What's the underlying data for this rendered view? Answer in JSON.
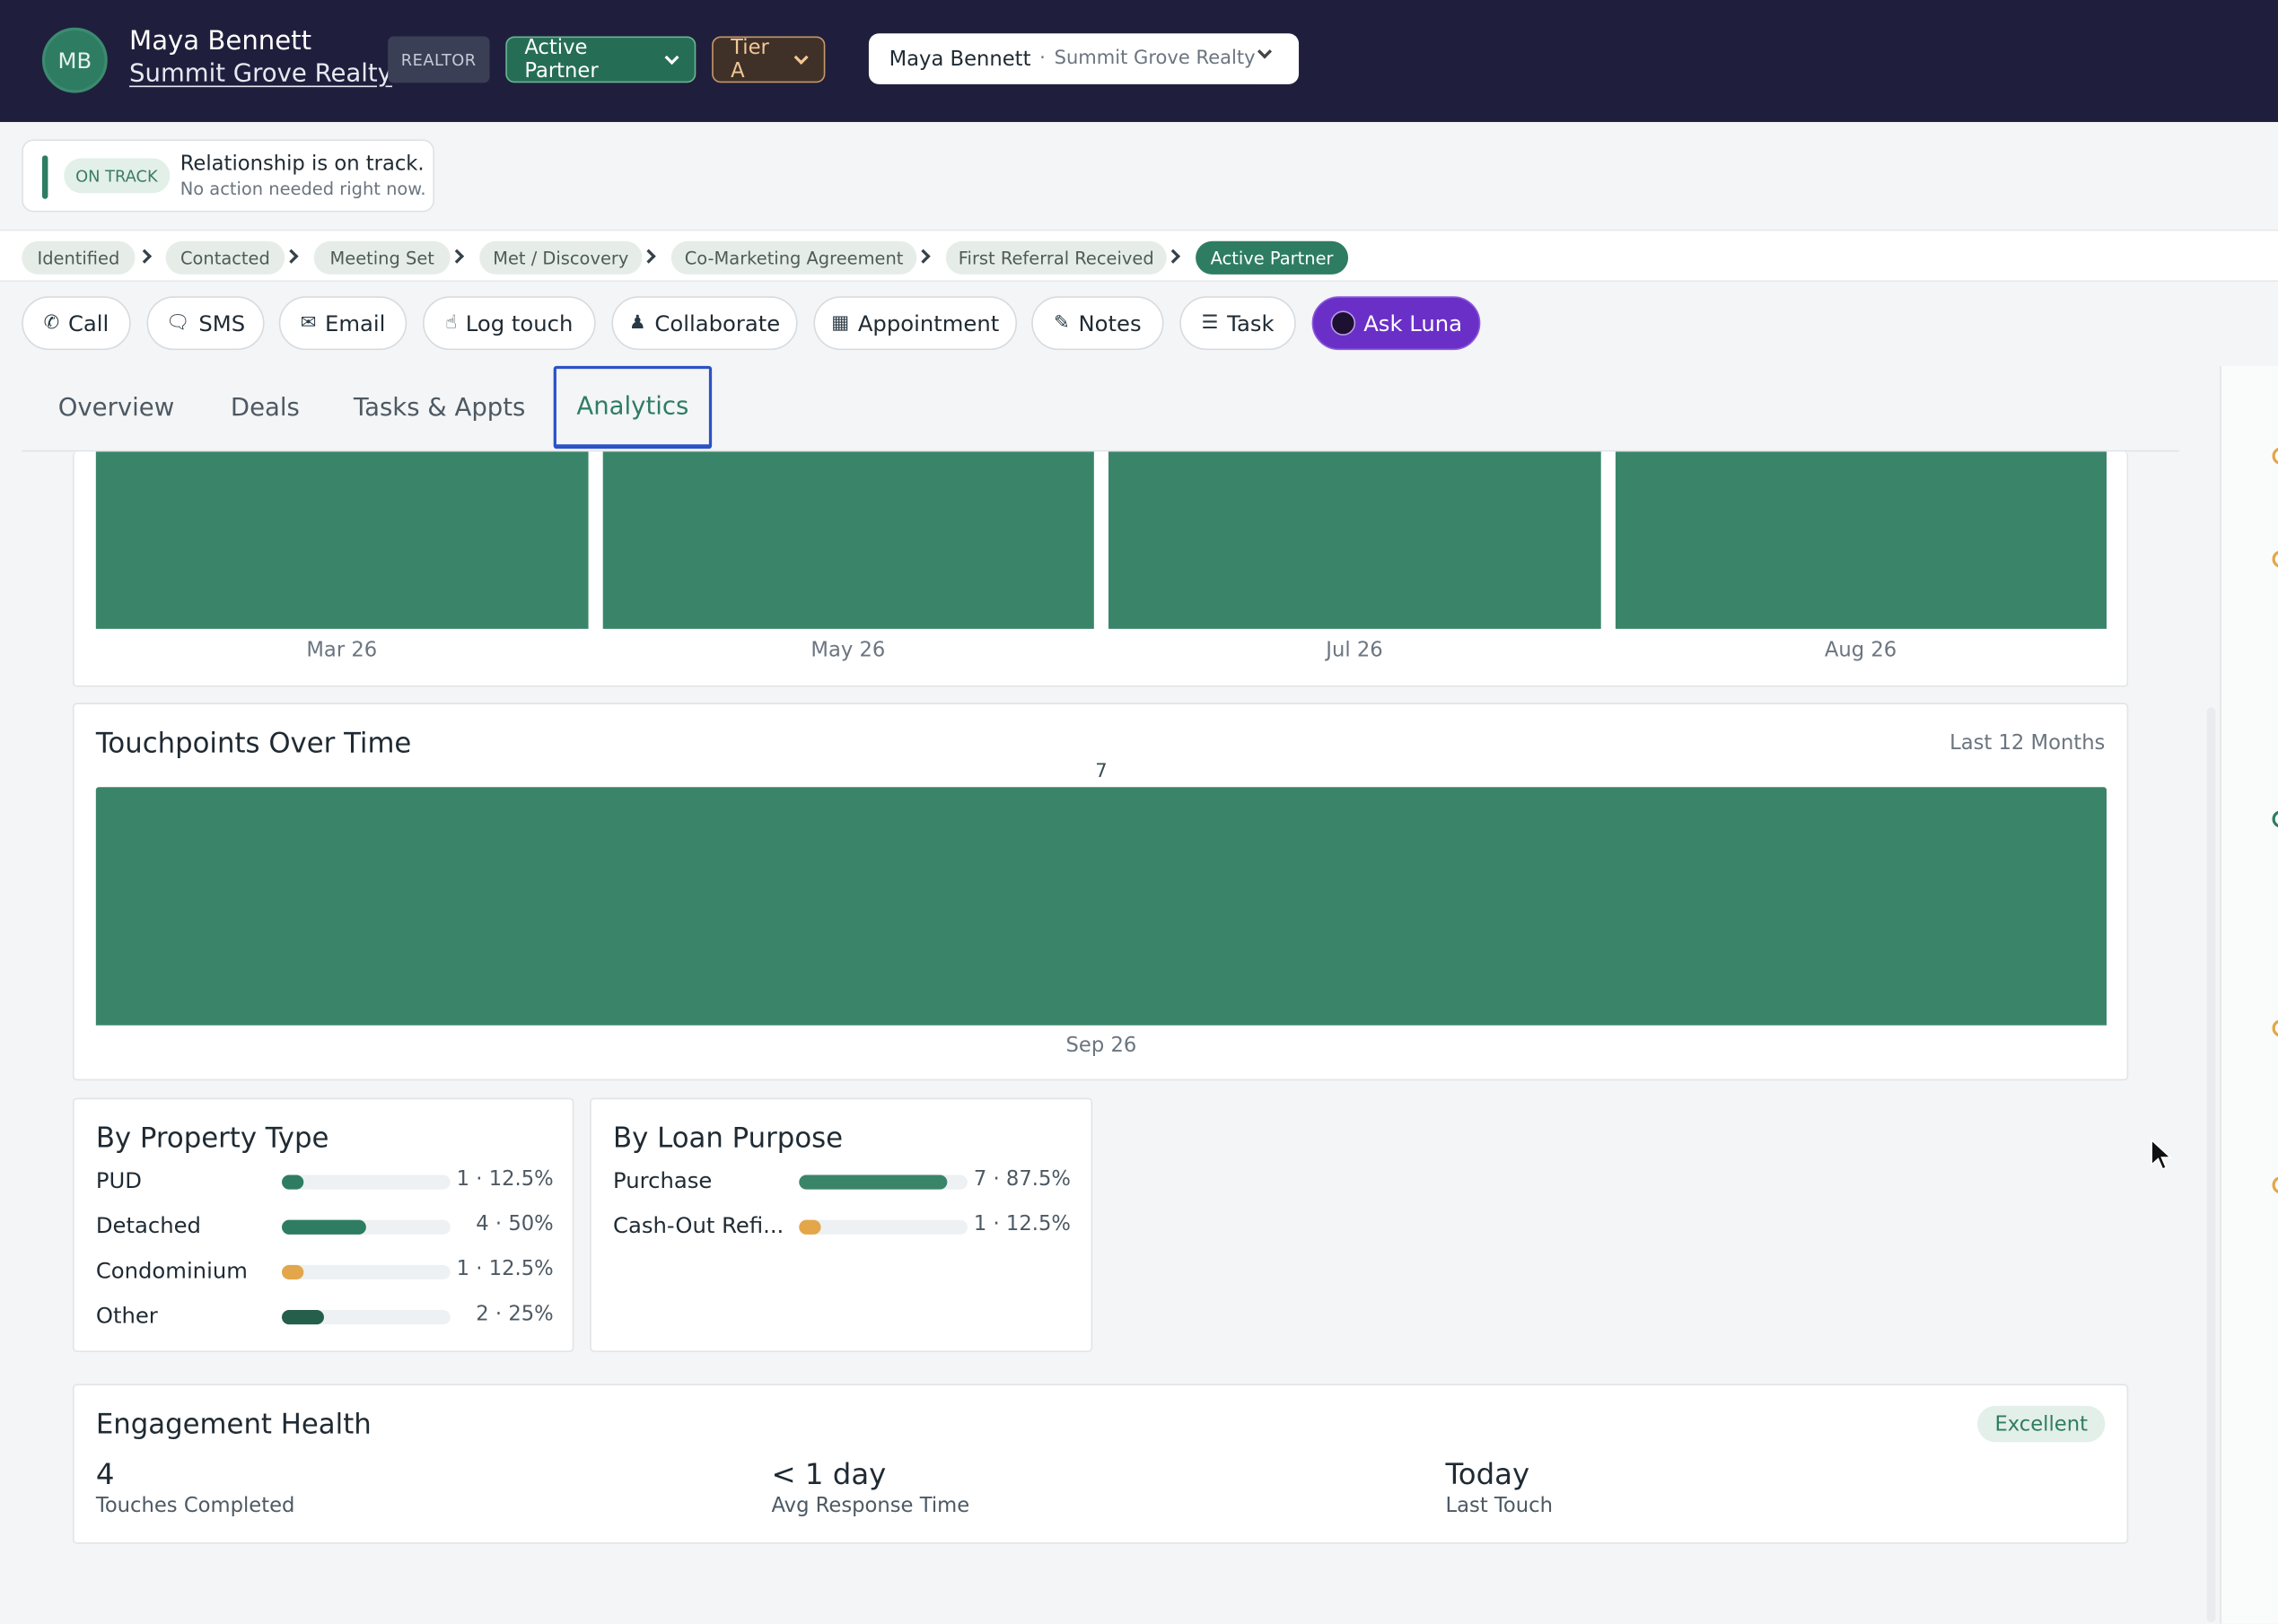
{
  "header": {
    "initials": "MB",
    "name": "Maya Bennett",
    "company": "Summit Grove Realty",
    "role_badge": "REALTOR",
    "status_label": "Active Partner",
    "tier_label": "Tier A",
    "context_name": "Maya Bennett",
    "context_sep": "·",
    "context_company": "Summit Grove Realty"
  },
  "status": {
    "tag": "ON TRACK",
    "title": "Relationship is on track.",
    "subtitle": "No action needed right now."
  },
  "pipeline": {
    "stages": [
      "Identified",
      "Contacted",
      "Meeting Set",
      "Met / Discovery",
      "Co-Marketing Agreement",
      "First Referral Received",
      "Active Partner"
    ],
    "current": "Active Partner"
  },
  "actions": {
    "call": "Call",
    "sms": "SMS",
    "email": "Email",
    "log_touch": "Log touch",
    "collaborate": "Collaborate",
    "appointment": "Appointment",
    "notes": "Notes",
    "task": "Task",
    "ask_luna": "Ask Luna"
  },
  "tabs": [
    "Overview",
    "Deals",
    "Tasks & Appts",
    "Analytics"
  ],
  "active_tab": "Analytics",
  "top_chart": {
    "chart_data": {
      "type": "bar",
      "categories": [
        "Mar 26",
        "May 26",
        "Jul 26",
        "Aug 26"
      ]
    }
  },
  "touchpoints": {
    "title": "Touchpoints Over Time",
    "range": "Last 12 Months",
    "chart_data": {
      "type": "bar",
      "categories": [
        "Sep 26"
      ],
      "values": [
        7
      ]
    }
  },
  "property_type": {
    "title": "By Property Type",
    "rows": [
      {
        "label": "PUD",
        "value_text": "1 · 12.5%",
        "fraction": 0.125,
        "color": "#2e7d63"
      },
      {
        "label": "Detached",
        "value_text": "4 · 50%",
        "fraction": 0.5,
        "color": "#2e7d63"
      },
      {
        "label": "Condominium",
        "value_text": "1 · 12.5%",
        "fraction": 0.125,
        "color": "#e3a64a"
      },
      {
        "label": "Other",
        "value_text": "2 · 25%",
        "fraction": 0.25,
        "color": "#255e4b"
      }
    ]
  },
  "loan_purpose": {
    "title": "By Loan Purpose",
    "rows": [
      {
        "label": "Purchase",
        "value_text": "7 · 87.5%",
        "fraction": 0.875,
        "color": "#3a856a"
      },
      {
        "label": "Cash-Out Refi...",
        "value_text": "1 · 12.5%",
        "fraction": 0.125,
        "color": "#e3a64a"
      }
    ]
  },
  "engagement": {
    "title": "Engagement Health",
    "badge": "Excellent",
    "metrics": [
      {
        "value": "4",
        "label": "Touches Completed"
      },
      {
        "value": "< 1 day",
        "label": "Avg Response Time"
      },
      {
        "value": "Today",
        "label": "Last Touch"
      }
    ]
  },
  "colors": {
    "header_bg": "#1f1f3d",
    "brand_green": "#2e7d63",
    "bar_green": "#3a856a",
    "amber": "#e3a64a",
    "luna_purple": "#6a2fc7",
    "tab_focus": "#2b52c7"
  }
}
